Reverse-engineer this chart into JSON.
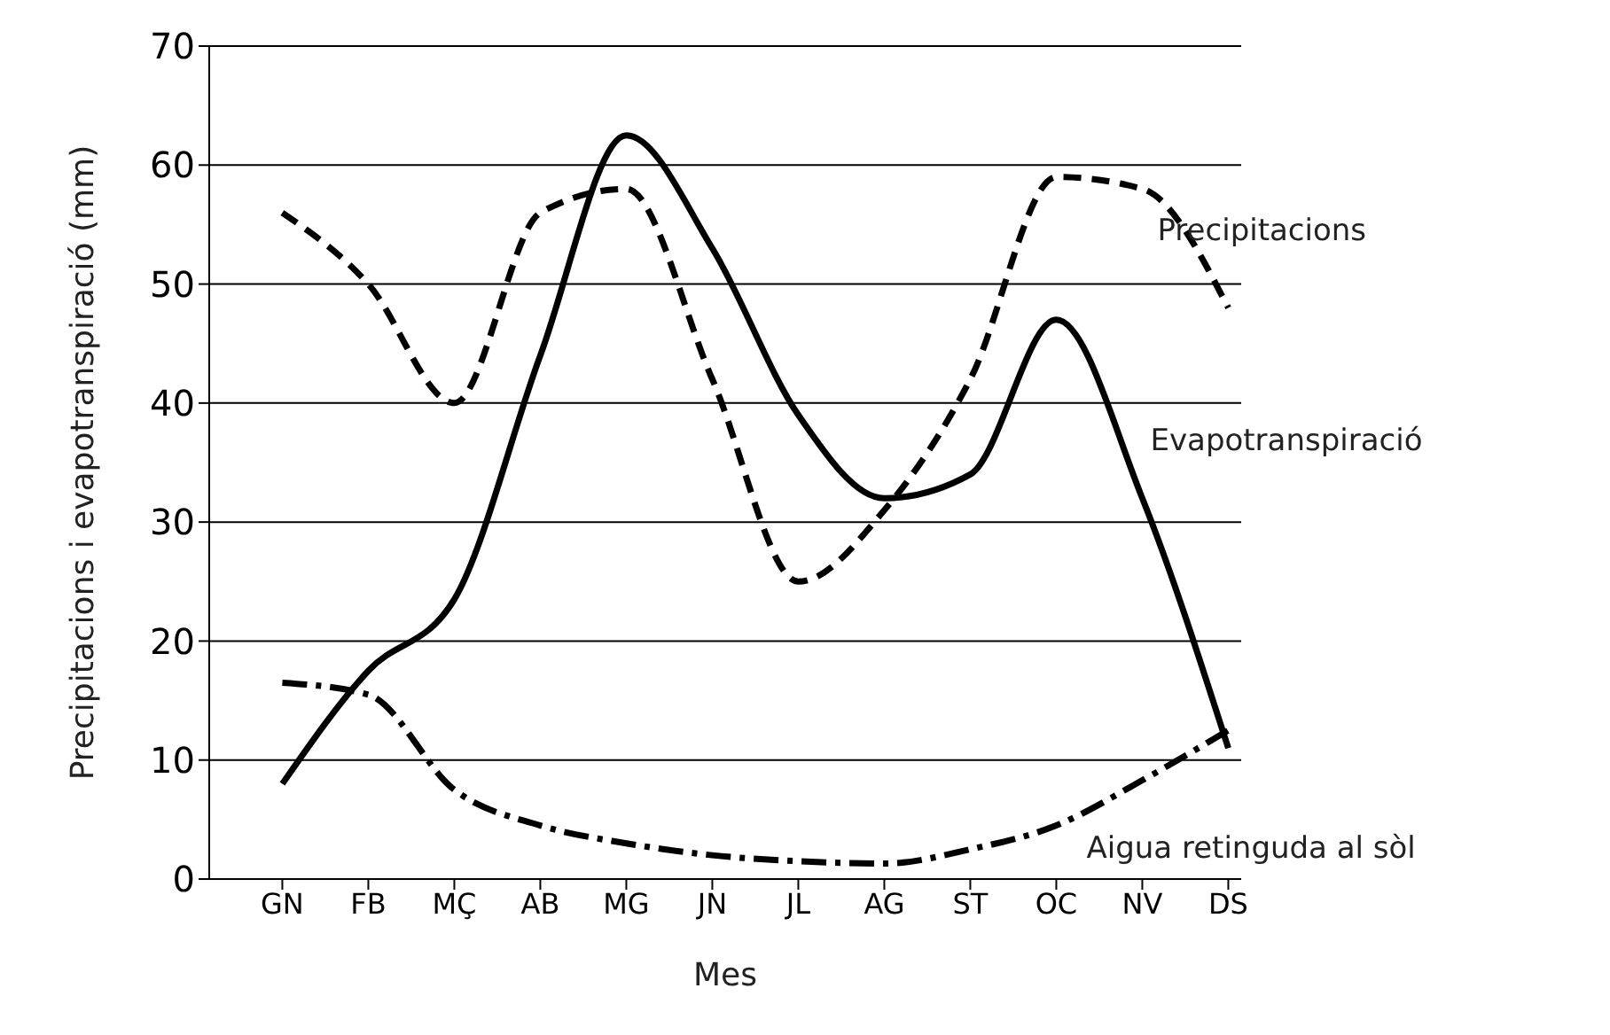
{
  "chart_data": {
    "type": "line",
    "xlabel": "Mes",
    "ylabel": "Precipitacions i evapotranspiració (mm)",
    "categories": [
      "GN",
      "FB",
      "MÇ",
      "AB",
      "MG",
      "JN",
      "JL",
      "AG",
      "ST",
      "OC",
      "NV",
      "DS"
    ],
    "ylim": [
      0,
      70
    ],
    "yticks": [
      0,
      10,
      20,
      30,
      40,
      50,
      60,
      70
    ],
    "grid": "y",
    "legend": false,
    "marker": "none",
    "series": [
      {
        "name": "Precipitacions",
        "color": "#000000",
        "line_style": "dashed",
        "values": [
          56,
          50,
          40,
          56,
          58,
          42,
          25,
          31,
          42,
          59,
          58,
          48
        ]
      },
      {
        "name": "Evapotranspiració",
        "color": "#000000",
        "line_style": "solid",
        "values": [
          8,
          17.5,
          23.5,
          44,
          62.5,
          53,
          39,
          32,
          34,
          47,
          32,
          11
        ]
      },
      {
        "name": "Aigua retinguda al sòl",
        "color": "#000000",
        "line_style": "dotted",
        "values": [
          16.5,
          15.5,
          7.5,
          4.5,
          3,
          2,
          1.5,
          1.3,
          2.5,
          4.5,
          8.3,
          12.5
        ]
      }
    ]
  }
}
